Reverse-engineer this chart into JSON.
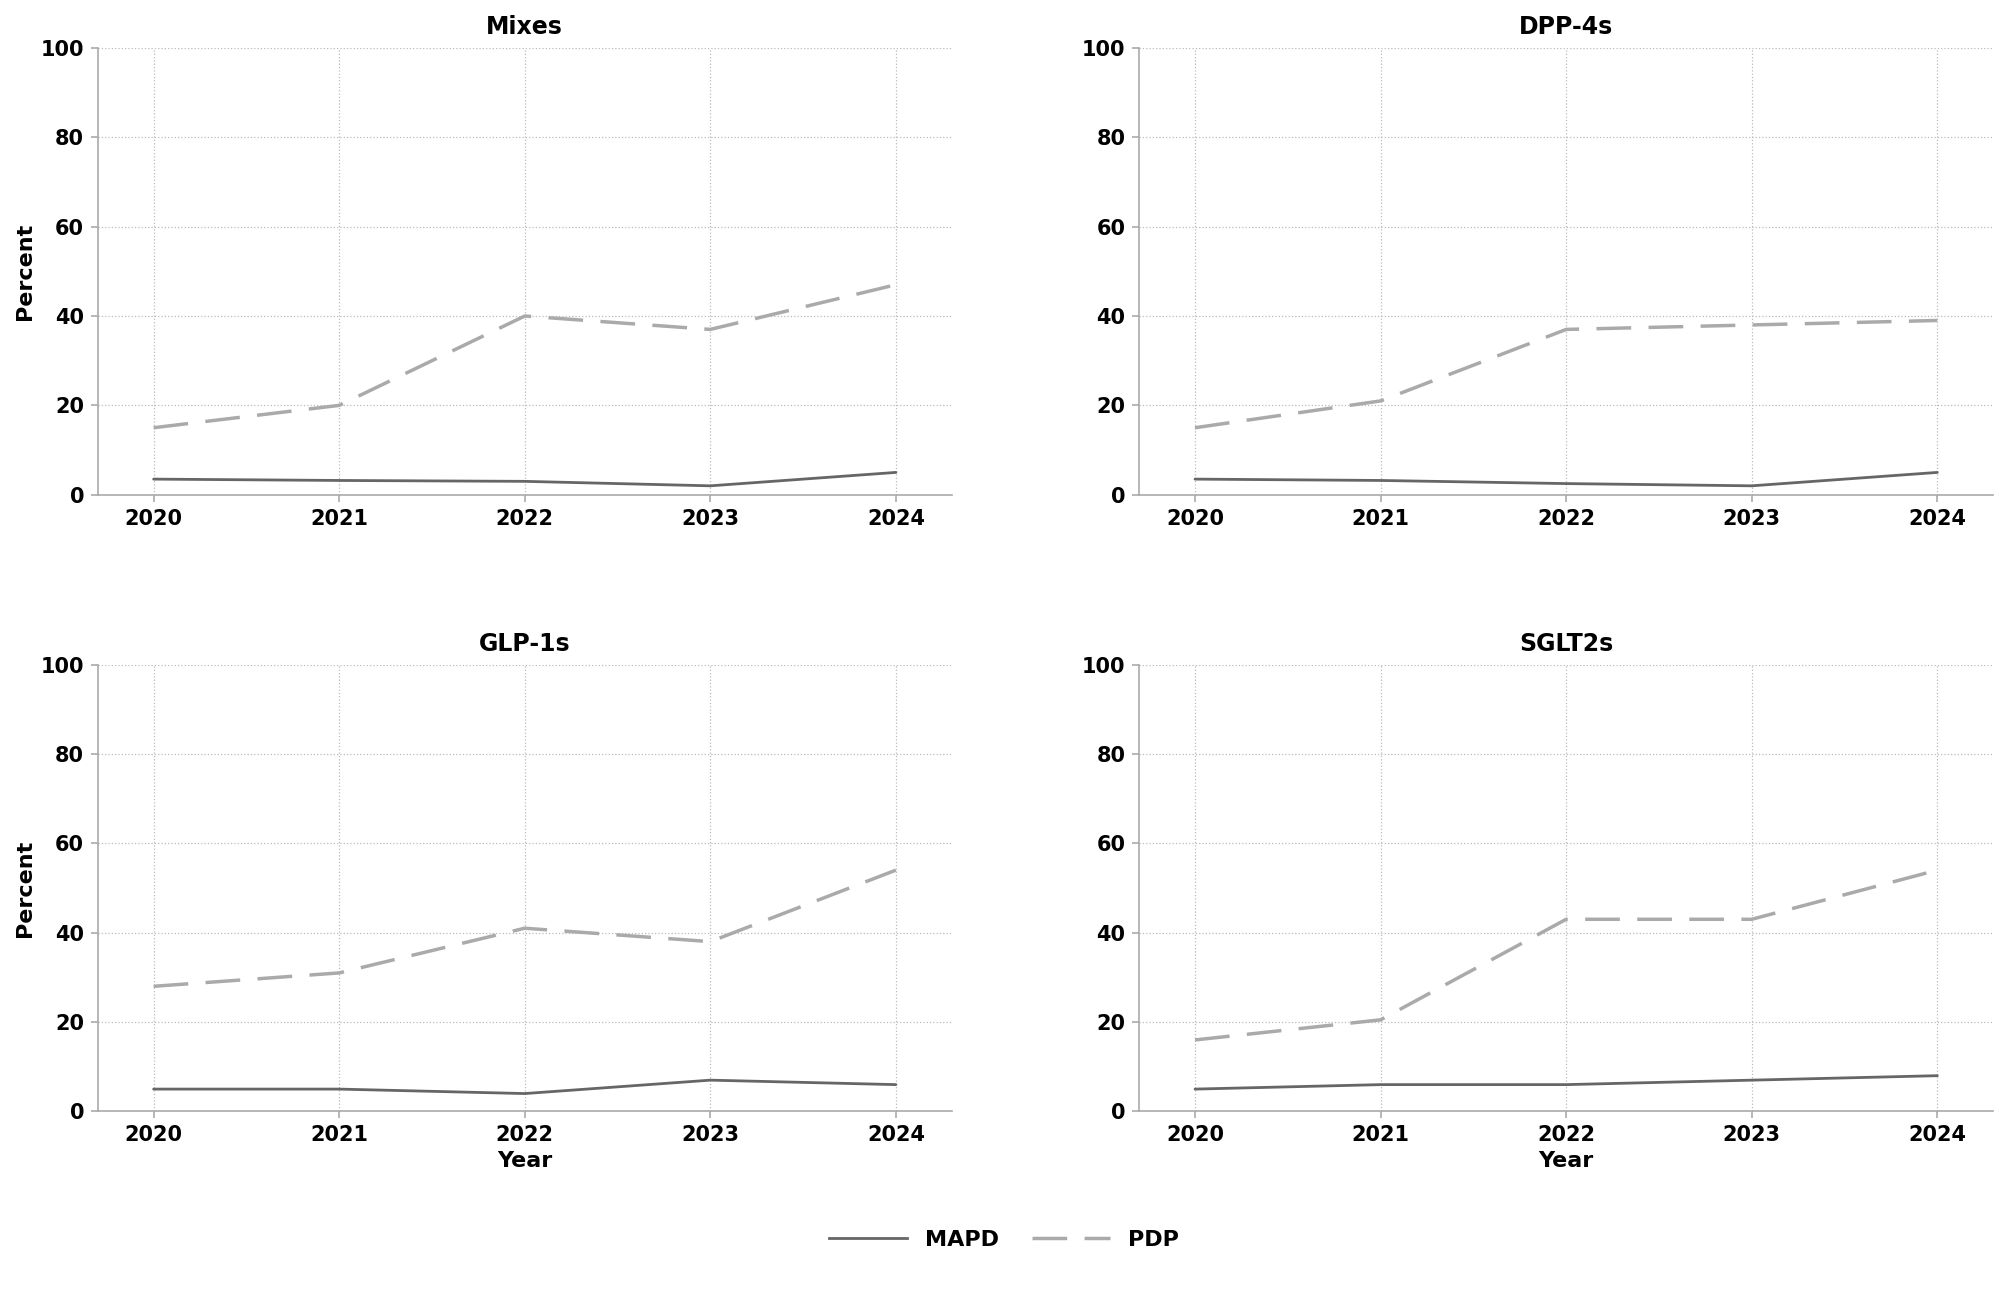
{
  "years": [
    2020,
    2021,
    2022,
    2023,
    2024
  ],
  "panels": [
    {
      "title": "Mixes",
      "mapd": [
        3.5,
        3.2,
        3.0,
        2.0,
        5.0
      ],
      "pdp": [
        15.0,
        20.0,
        40.0,
        37.0,
        47.0
      ]
    },
    {
      "title": "DPP-4s",
      "mapd": [
        3.5,
        3.2,
        2.5,
        2.0,
        5.0
      ],
      "pdp": [
        15.0,
        21.0,
        37.0,
        38.0,
        39.0
      ]
    },
    {
      "title": "GLP-1s",
      "mapd": [
        5.0,
        5.0,
        4.0,
        7.0,
        6.0
      ],
      "pdp": [
        28.0,
        31.0,
        41.0,
        38.0,
        54.0
      ]
    },
    {
      "title": "SGLT2s",
      "mapd": [
        5.0,
        6.0,
        6.0,
        7.0,
        8.0
      ],
      "pdp": [
        16.0,
        20.5,
        43.0,
        43.0,
        54.0
      ]
    }
  ],
  "mapd_color": "#666666",
  "pdp_color": "#aaaaaa",
  "ylim": [
    0,
    100
  ],
  "yticks": [
    0,
    20,
    40,
    60,
    80,
    100
  ],
  "ylabel": "Percent",
  "xlabel": "Year",
  "title_fontsize": 17,
  "label_fontsize": 16,
  "tick_fontsize": 15,
  "legend_fontsize": 16,
  "background_color": "#ffffff",
  "grid_color": "#bbbbbb",
  "spine_color": "#aaaaaa",
  "linewidth": 2.5,
  "mapd_lw": 2.0,
  "pdp_lw": 2.5
}
